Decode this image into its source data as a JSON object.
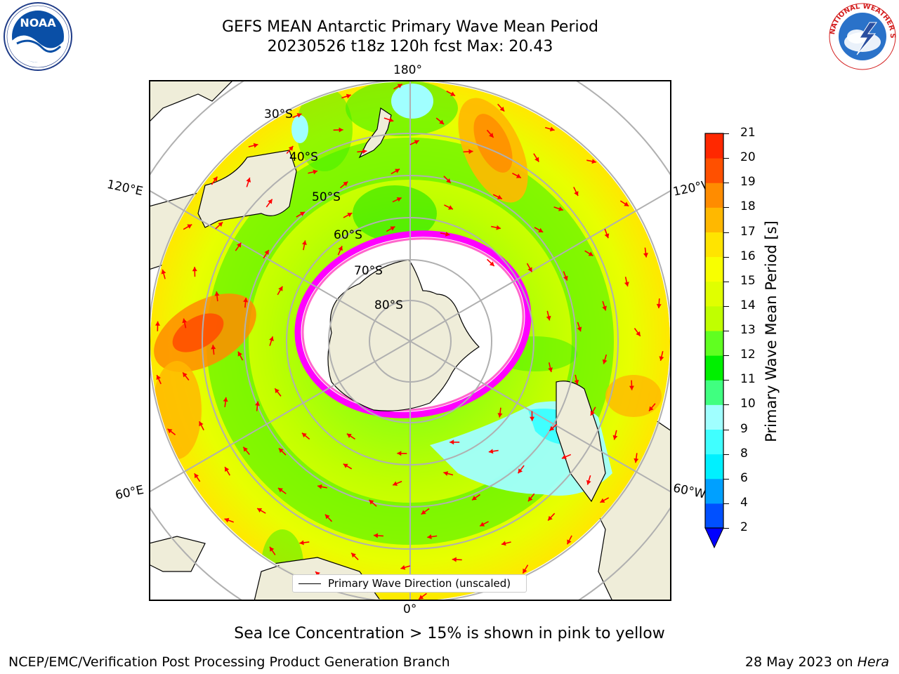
{
  "header": {
    "title_line1": "GEFS MEAN Antarctic Primary Wave Mean Period",
    "title_line2": "20230526 t18z 120h fcst   Max: 20.43"
  },
  "logos": {
    "left": {
      "name": "noaa-logo",
      "text": "NOAA",
      "ring_text": "NATIONAL OCEANIC AND ATMOSPHERIC ADMINISTRATION · U.S. DEPARTMENT OF COMMERCE"
    },
    "right": {
      "name": "nws-logo",
      "ring_text": "NATIONAL WEATHER SERVICE"
    }
  },
  "map": {
    "projection": "south-polar-stereographic",
    "longitude_labels": {
      "top": "180°",
      "bottom": "0°",
      "upper_left": "120°E",
      "upper_right": "120°W",
      "lower_left": "60°E",
      "lower_right": "60°W"
    },
    "latitude_labels": [
      "30°S",
      "40°S",
      "50°S",
      "60°S",
      "70°S",
      "80°S"
    ],
    "legend_entry": "Primary Wave Direction (unscaled)",
    "arrow_color": "#ff0000",
    "land_color": "#efedd9",
    "sea_ice_colors": [
      "#ff00ff",
      "#ff66cc",
      "#ffcc66",
      "#ffff00"
    ]
  },
  "colorbar": {
    "label": "Primary Wave Mean Period [s]",
    "ticks": [
      "2",
      "4",
      "6",
      "8",
      "9",
      "10",
      "11",
      "12",
      "13",
      "14",
      "15",
      "16",
      "17",
      "18",
      "19",
      "20",
      "21"
    ],
    "colors": [
      "#0050ff",
      "#00a0ff",
      "#00f0ff",
      "#40ffff",
      "#a0ffff",
      "#40ff80",
      "#00f000",
      "#60ff20",
      "#c0ff00",
      "#e0ff00",
      "#f8ff00",
      "#ffe400",
      "#ffb800",
      "#ff8c00",
      "#ff5000",
      "#ff2800"
    ],
    "under_color": "#0000ff",
    "max_color": "#ff0000"
  },
  "notes": {
    "sea_ice": "Sea Ice Concentration > 15% is shown in pink to yellow"
  },
  "footer": {
    "left": "NCEP/EMC/Verification Post Processing Product Generation Branch",
    "date": "28 May 2023 on",
    "machine": "Hera"
  }
}
